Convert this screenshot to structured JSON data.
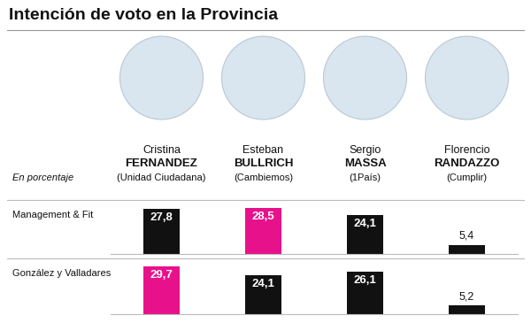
{
  "header": {
    "title": "Intención de voto en la Provincia",
    "note": "En porcentaje",
    "candidates": [
      {
        "first_name": "Cristina",
        "last_name": "FERNANDEZ",
        "party": "(Unidad Ciudadana)"
      },
      {
        "first_name": "Esteban",
        "last_name": "BULLRICH",
        "party": "(Cambiemos)"
      },
      {
        "first_name": "Sergio",
        "last_name": "MASSA",
        "party": "(1País)"
      },
      {
        "first_name": "Florencio",
        "last_name": "RANDAZZO",
        "party": "(Cumplir)"
      }
    ]
  },
  "chart_data": [
    {
      "type": "bar",
      "title": "Management & Fit",
      "values": [
        27.8,
        28.5,
        24.1,
        5.4
      ],
      "value_labels": [
        "27,8",
        "28,5",
        "24,1",
        "5,4"
      ],
      "colors": [
        "#111111",
        "#e8118c",
        "#111111",
        "#111111"
      ],
      "ylim": [
        0,
        30
      ],
      "data_labels": true,
      "tick_labels": false
    },
    {
      "type": "bar",
      "title": "González y Valladares",
      "values": [
        29.7,
        24.1,
        26.1,
        5.2
      ],
      "value_labels": [
        "29,7",
        "24,1",
        "26,1",
        "5,2"
      ],
      "colors": [
        "#e8118c",
        "#111111",
        "#111111",
        "#111111"
      ],
      "ylim": [
        0,
        30
      ],
      "data_labels": true,
      "tick_labels": false
    }
  ]
}
